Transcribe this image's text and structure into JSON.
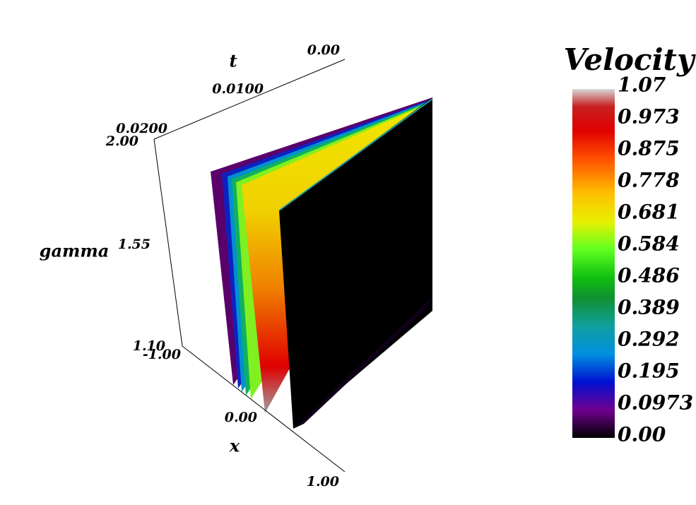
{
  "axes": {
    "t": {
      "label": "t",
      "ticks": [
        "0.00",
        "0.0100",
        "0.0200"
      ]
    },
    "gamma": {
      "label": "gamma",
      "ticks": [
        "2.00",
        "1.55",
        "1.10"
      ]
    },
    "x": {
      "label": "x",
      "ticks": [
        "-1.00",
        "0.00",
        "1.00"
      ]
    }
  },
  "colorbar": {
    "title": "Velocity",
    "labels": [
      "1.07",
      "0.973",
      "0.875",
      "0.778",
      "0.681",
      "0.584",
      "0.486",
      "0.389",
      "0.292",
      "0.195",
      "0.0973",
      "0.00"
    ]
  }
}
